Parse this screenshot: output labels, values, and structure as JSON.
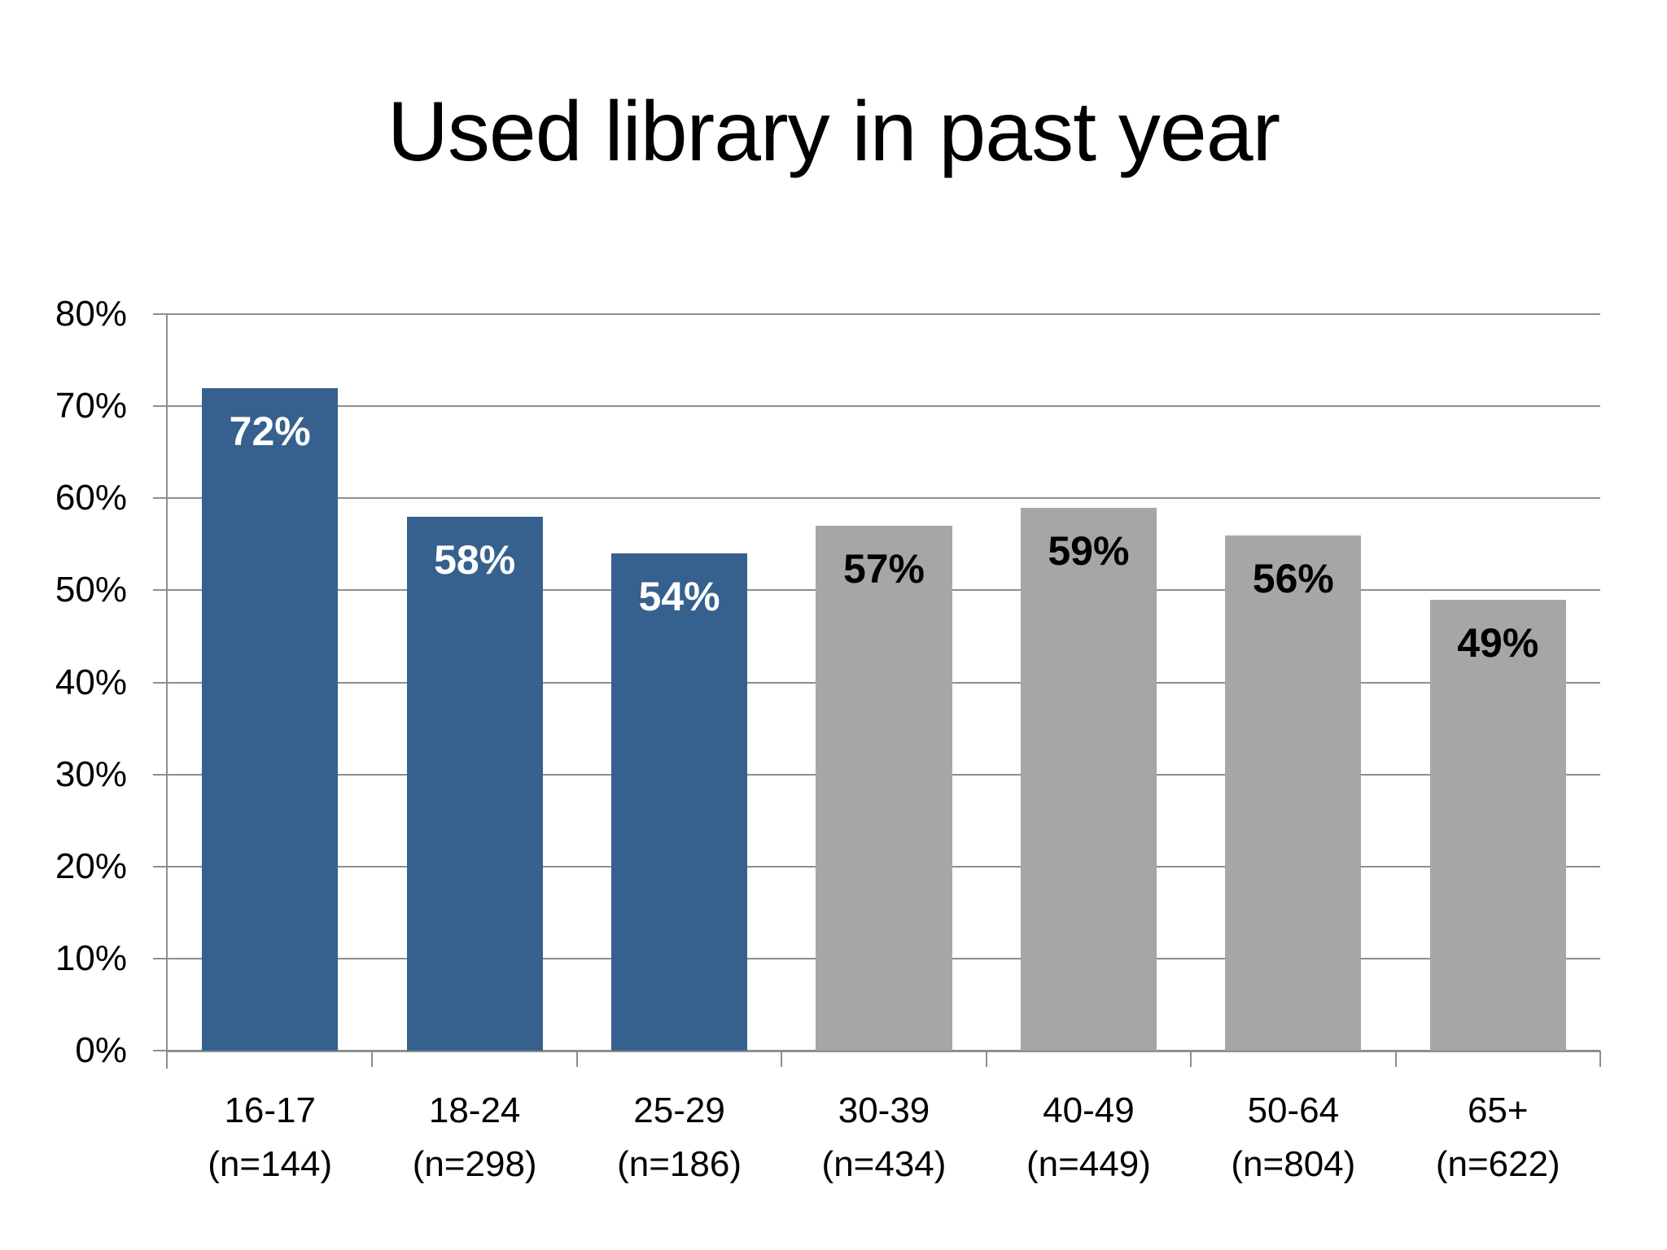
{
  "chart_data": {
    "type": "bar",
    "title": "Used library in past year",
    "categories": [
      "16-17",
      "18-24",
      "25-29",
      "30-39",
      "40-49",
      "50-64",
      "65+"
    ],
    "sample_labels": [
      "(n=144)",
      "(n=298)",
      "(n=186)",
      "(n=434)",
      "(n=449)",
      "(n=804)",
      "(n=622)"
    ],
    "values": [
      72,
      58,
      54,
      57,
      59,
      56,
      49
    ],
    "data_labels": [
      "72%",
      "58%",
      "54%",
      "57%",
      "59%",
      "56%",
      "49%"
    ],
    "bar_colors": [
      "#36618E",
      "#36618E",
      "#36618E",
      "#A6A6A6",
      "#A6A6A6",
      "#A6A6A6",
      "#A6A6A6"
    ],
    "data_label_colors": [
      "#FFFFFF",
      "#FFFFFF",
      "#FFFFFF",
      "#000000",
      "#000000",
      "#000000",
      "#000000"
    ],
    "xlabel": "",
    "ylabel": "",
    "ylim": [
      0,
      80
    ],
    "ytick_step": 10,
    "ytick_labels": [
      "0%",
      "10%",
      "20%",
      "30%",
      "40%",
      "50%",
      "60%",
      "70%",
      "80%"
    ],
    "grid": true,
    "legend": "none",
    "highlight_color": "#36618E",
    "neutral_color": "#A6A6A6",
    "axis_color": "#8E8E8E"
  }
}
